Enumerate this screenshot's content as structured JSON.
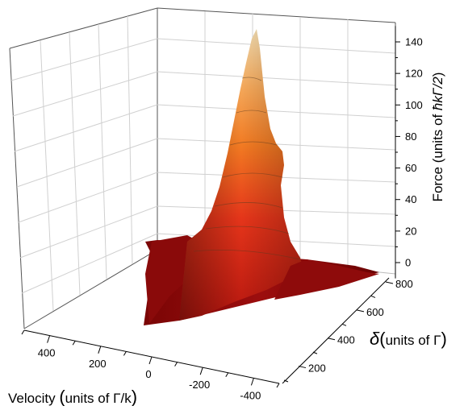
{
  "chart_data": {
    "type": "surface",
    "title": "",
    "zlabel_prefix": "Force (units of ",
    "zlabel_math": "ħkΓ/2",
    "zlabel_suffix": ")",
    "zlim": [
      -10,
      150
    ],
    "zticks": [
      0,
      20,
      40,
      60,
      80,
      100,
      120,
      140
    ],
    "xlabel_prefix": "Velocity ",
    "xlabel_paren_open": "(",
    "xlabel_inner": "units of Γ/k",
    "xlabel_paren_close": ")",
    "xticks": [
      400,
      200,
      0,
      -200,
      -400
    ],
    "ylabel_symbol": "δ",
    "ylabel_paren_open": "(",
    "ylabel_inner": "units of Γ",
    "ylabel_paren_close": ")",
    "yticks": [
      200,
      400,
      600,
      800
    ],
    "surface_profile": {
      "description_units": "force in units of ħkΓ/2",
      "peak": {
        "velocity": 0,
        "detuning": 800,
        "force": 148
      },
      "samples": [
        {
          "velocity": 500,
          "detuning": 100,
          "force": 5
        },
        {
          "velocity": 300,
          "detuning": 300,
          "force": 20
        },
        {
          "velocity": 100,
          "detuning": 600,
          "force": 70
        },
        {
          "velocity": 0,
          "detuning": 800,
          "force": 148
        },
        {
          "velocity": -100,
          "detuning": 700,
          "force": 80
        },
        {
          "velocity": -300,
          "detuning": 500,
          "force": 15
        },
        {
          "velocity": -500,
          "detuning": 800,
          "force": 0
        }
      ]
    },
    "colormap": [
      "#6e0000",
      "#a30d0d",
      "#e02a14",
      "#f26a1c",
      "#f6a04a",
      "#f3d7a8"
    ],
    "grid": true
  }
}
